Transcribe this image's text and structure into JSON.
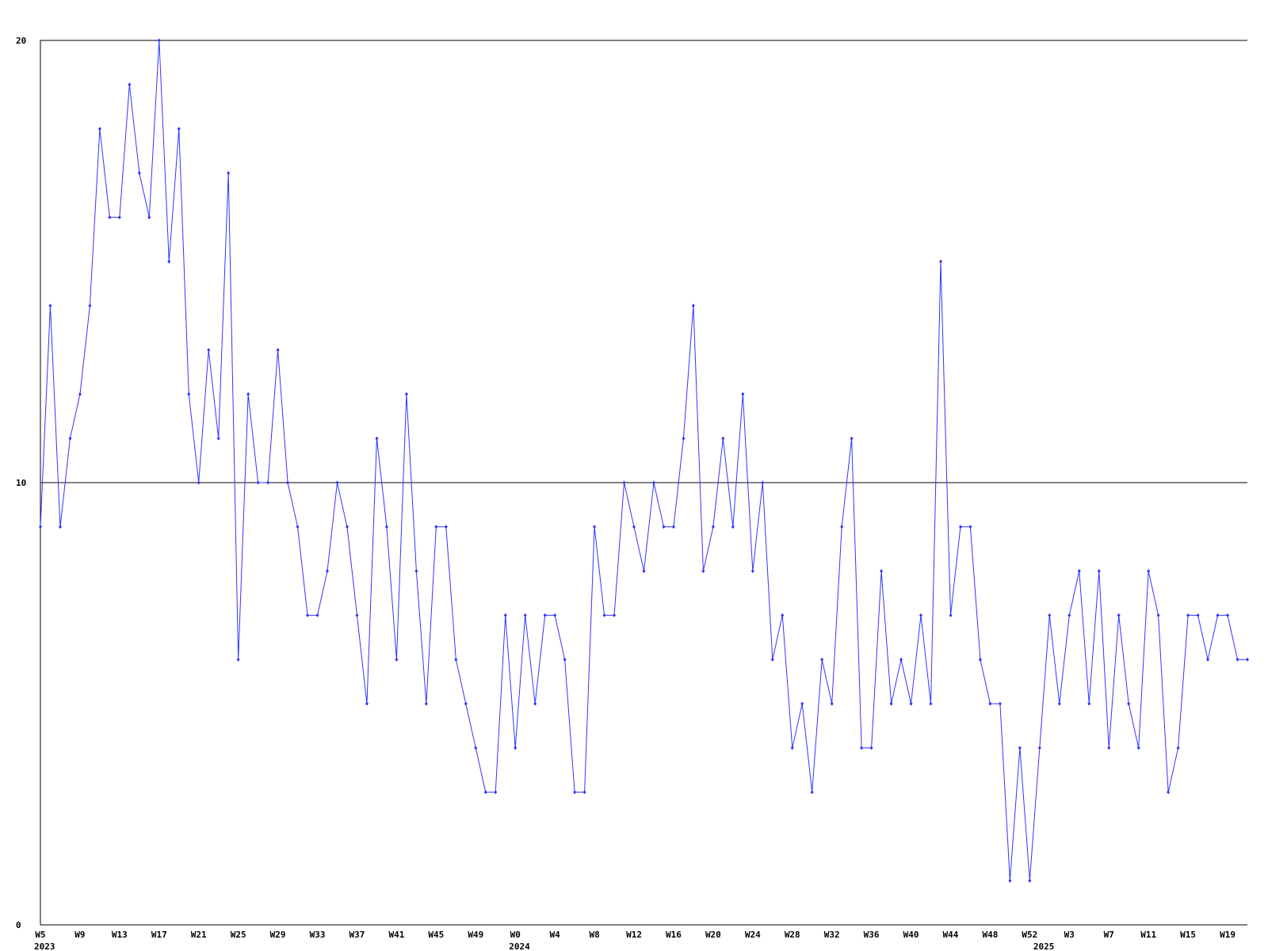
{
  "chart_data": {
    "type": "line",
    "categories": [
      "W5",
      null,
      null,
      null,
      "W9",
      null,
      null,
      null,
      "W13",
      null,
      null,
      null,
      "W17",
      null,
      null,
      null,
      "W21",
      null,
      null,
      null,
      "W25",
      null,
      null,
      null,
      "W29",
      null,
      null,
      null,
      "W33",
      null,
      null,
      null,
      "W37",
      null,
      null,
      null,
      "W41",
      null,
      null,
      null,
      "W45",
      null,
      null,
      null,
      "W49",
      null,
      null,
      null,
      "W0",
      null,
      null,
      null,
      "W4",
      null,
      null,
      null,
      "W8",
      null,
      null,
      null,
      "W12",
      null,
      null,
      null,
      "W16",
      null,
      null,
      null,
      "W20",
      null,
      null,
      null,
      "W24",
      null,
      null,
      null,
      "W28",
      null,
      null,
      null,
      "W32",
      null,
      null,
      null,
      "W36",
      null,
      null,
      null,
      "W40",
      null,
      null,
      null,
      "W44",
      null,
      null,
      null,
      "W48",
      null,
      null,
      null,
      "W52",
      null,
      null,
      null,
      "W3",
      null,
      null,
      null,
      "W7",
      null,
      null,
      null,
      "W11",
      null,
      null,
      null,
      "W15",
      null,
      null,
      null,
      "W19",
      null,
      null
    ],
    "year_labels": [
      {
        "label": "2023",
        "index": 0
      },
      {
        "label": "2024",
        "index": 48
      },
      {
        "label": "2025",
        "index": 101
      }
    ],
    "values": [
      9,
      14,
      9,
      11,
      12,
      14,
      18,
      16,
      16,
      19,
      17,
      16,
      20,
      15,
      18,
      12,
      10,
      13,
      11,
      17,
      6,
      12,
      10,
      10,
      13,
      10,
      9,
      7,
      7,
      8,
      10,
      9,
      7,
      5,
      11,
      9,
      6,
      12,
      8,
      5,
      9,
      9,
      6,
      5,
      4,
      3,
      3,
      7,
      4,
      7,
      5,
      7,
      7,
      6,
      3,
      3,
      9,
      7,
      7,
      10,
      9,
      8,
      10,
      9,
      9,
      11,
      14,
      8,
      9,
      11,
      9,
      12,
      8,
      10,
      6,
      7,
      4,
      5,
      3,
      6,
      5,
      9,
      11,
      4,
      4,
      8,
      5,
      6,
      5,
      7,
      5,
      15,
      7,
      9,
      9,
      6,
      5,
      5,
      1,
      4,
      1,
      4,
      7,
      5,
      7,
      8,
      5,
      8,
      4,
      7,
      5,
      4,
      8,
      7,
      3,
      4,
      7,
      7,
      6,
      7,
      7,
      6,
      6
    ],
    "color": "#3333ff",
    "ylim": [
      0,
      20
    ],
    "yticks": [
      0,
      10,
      20
    ],
    "grid": true
  }
}
